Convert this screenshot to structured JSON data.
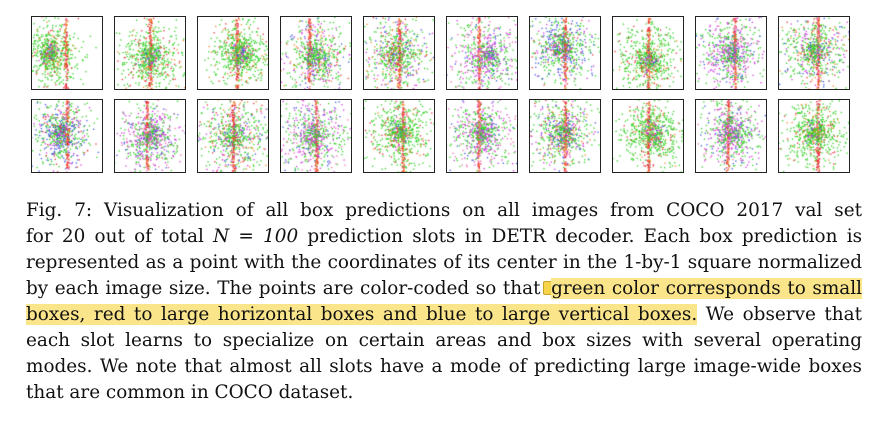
{
  "figure": {
    "rows": 2,
    "columns": 10,
    "slots": [
      {
        "x_mean": 0.25,
        "y_mean": 0.5,
        "spread": 0.2,
        "stripe_x": 0.48,
        "palette": "green"
      },
      {
        "x_mean": 0.5,
        "y_mean": 0.55,
        "spread": 0.22,
        "stripe_x": 0.5,
        "palette": "green"
      },
      {
        "x_mean": 0.6,
        "y_mean": 0.5,
        "spread": 0.2,
        "stripe_x": 0.55,
        "palette": "green"
      },
      {
        "x_mean": 0.5,
        "y_mean": 0.55,
        "spread": 0.24,
        "stripe_x": 0.4,
        "palette": "mixed"
      },
      {
        "x_mean": 0.45,
        "y_mean": 0.5,
        "spread": 0.24,
        "stripe_x": 0.5,
        "palette": "mixed"
      },
      {
        "x_mean": 0.55,
        "y_mean": 0.55,
        "spread": 0.25,
        "stripe_x": 0.45,
        "palette": "magenta"
      },
      {
        "x_mean": 0.45,
        "y_mean": 0.4,
        "spread": 0.24,
        "stripe_x": 0.5,
        "palette": "blue"
      },
      {
        "x_mean": 0.5,
        "y_mean": 0.6,
        "spread": 0.22,
        "stripe_x": 0.5,
        "palette": "green"
      },
      {
        "x_mean": 0.5,
        "y_mean": 0.5,
        "spread": 0.22,
        "stripe_x": 0.55,
        "palette": "magenta"
      },
      {
        "x_mean": 0.5,
        "y_mean": 0.45,
        "spread": 0.22,
        "stripe_x": 0.55,
        "palette": "mixed"
      },
      {
        "x_mean": 0.4,
        "y_mean": 0.45,
        "spread": 0.22,
        "stripe_x": 0.5,
        "palette": "blue"
      },
      {
        "x_mean": 0.5,
        "y_mean": 0.5,
        "spread": 0.22,
        "stripe_x": 0.45,
        "palette": "magenta"
      },
      {
        "x_mean": 0.5,
        "y_mean": 0.5,
        "spread": 0.26,
        "stripe_x": 0.5,
        "palette": "mixed"
      },
      {
        "x_mean": 0.45,
        "y_mean": 0.5,
        "spread": 0.24,
        "stripe_x": 0.5,
        "palette": "magenta"
      },
      {
        "x_mean": 0.5,
        "y_mean": 0.45,
        "spread": 0.22,
        "stripe_x": 0.55,
        "palette": "green"
      },
      {
        "x_mean": 0.5,
        "y_mean": 0.45,
        "spread": 0.22,
        "stripe_x": 0.45,
        "palette": "magenta"
      },
      {
        "x_mean": 0.45,
        "y_mean": 0.45,
        "spread": 0.22,
        "stripe_x": 0.5,
        "palette": "mixed"
      },
      {
        "x_mean": 0.55,
        "y_mean": 0.45,
        "spread": 0.22,
        "stripe_x": 0.5,
        "palette": "green"
      },
      {
        "x_mean": 0.5,
        "y_mean": 0.45,
        "spread": 0.22,
        "stripe_x": 0.45,
        "palette": "magenta"
      },
      {
        "x_mean": 0.5,
        "y_mean": 0.45,
        "spread": 0.22,
        "stripe_x": 0.55,
        "palette": "green"
      }
    ],
    "colors": {
      "green": "#33d126",
      "red": "#e8333a",
      "orange": "#f08a2a",
      "blue": "#3f5be0",
      "magenta": "#d23ce0",
      "pink": "#f06ea8"
    }
  },
  "caption": {
    "line1": "Fig. 7: Visualization of all box predictions on all images from COCO 2017 val set",
    "line2_pre": "for 20 out of total ",
    "line2_math": "N = 100",
    "line2_post": " prediction slots in DETR decoder. Each box prediction is",
    "line3": "represented as a point with the coordinates of its center in the 1-by-1 square normalized",
    "line4_pre": "by each image size. The points are color-coded so that ",
    "line4_hl": "green color corresponds to small",
    "line5_hl": "boxes, red to large horizontal boxes and blue to large vertical boxes.",
    "line5_post": " We observe that",
    "line6": "each slot learns to specialize on certain areas and box sizes with several operating",
    "line7": "modes. We note that almost all slots have a mode of predicting large image-wide boxes",
    "line8": "that are common in COCO dataset."
  },
  "highlight_color": "#fbe58a"
}
